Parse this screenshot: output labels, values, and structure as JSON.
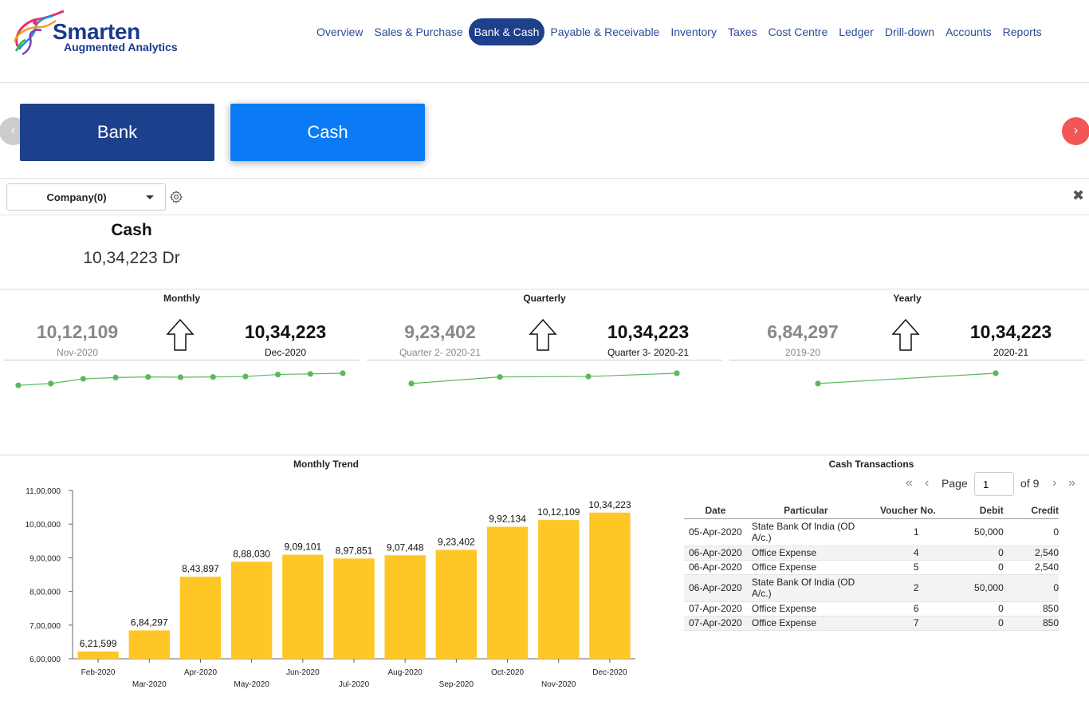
{
  "logo": {
    "line1": "Smarten",
    "line2": "Augmented Analytics"
  },
  "nav": {
    "items": [
      "Overview",
      "Sales & Purchase",
      "Bank & Cash",
      "Payable & Receivable",
      "Inventory",
      "Taxes",
      "Cost Centre",
      "Ledger",
      "Drill-down",
      "Accounts",
      "Reports"
    ],
    "active": "Bank & Cash"
  },
  "tabs": {
    "bank": "Bank",
    "cash": "Cash",
    "prev_icon": "‹",
    "next_icon": "›"
  },
  "filter": {
    "company_label": "Company(0)",
    "settings_icon": "gear-icon",
    "close_icon": "✖"
  },
  "summary": {
    "title": "Cash",
    "value": "10,34,223 Dr"
  },
  "kpis": {
    "monthly": {
      "title": "Monthly",
      "prev_value": "10,12,109",
      "prev_label": "Nov-2020",
      "cur_value": "10,34,223",
      "cur_label": "Dec-2020",
      "trend": [
        621599,
        684297,
        843897,
        888030,
        909101,
        897851,
        907448,
        923402,
        992134,
        1012109,
        1034223
      ]
    },
    "quarterly": {
      "title": "Quarterly",
      "prev_value": "9,23,402",
      "prev_label": "Quarter 2- 2020-21",
      "cur_value": "10,34,223",
      "cur_label": "Quarter 3- 2020-21",
      "trend": [
        684297,
        909101,
        923402,
        1034223
      ]
    },
    "yearly": {
      "title": "Yearly",
      "prev_value": "6,84,297",
      "prev_label": "2019-20",
      "cur_value": "10,34,223",
      "cur_label": "2020-21",
      "trend": [
        684297,
        1034223
      ]
    }
  },
  "chart_data": {
    "type": "bar",
    "title": "Monthly Trend",
    "categories": [
      "Feb-2020",
      "Mar-2020",
      "Apr-2020",
      "May-2020",
      "Jun-2020",
      "Jul-2020",
      "Aug-2020",
      "Sep-2020",
      "Oct-2020",
      "Nov-2020",
      "Dec-2020"
    ],
    "values": [
      621599,
      684297,
      843897,
      888030,
      909101,
      897851,
      907448,
      923402,
      992134,
      1012109,
      1034223
    ],
    "value_labels": [
      "6,21,599",
      "6,84,297",
      "8,43,897",
      "8,88,030",
      "9,09,101",
      "8,97,851",
      "9,07,448",
      "9,23,402",
      "9,92,134",
      "10,12,109",
      "10,34,223"
    ],
    "ylim": [
      600000,
      1100000
    ],
    "yticks": [
      600000,
      700000,
      800000,
      900000,
      1000000,
      1100000
    ],
    "ytick_labels": [
      "6,00,000",
      "7,00,000",
      "8,00,000",
      "9,00,000",
      "10,00,000",
      "11,00,000"
    ],
    "bar_color": "#fec726",
    "xlabel": "",
    "ylabel": "",
    "grid": false
  },
  "transactions": {
    "title": "Cash Transactions",
    "page_label": "Page",
    "page": "1",
    "of_label": "of 9",
    "columns": [
      "Date",
      "Particular",
      "Voucher No.",
      "Debit",
      "Credit"
    ],
    "rows": [
      [
        "05-Apr-2020",
        "State Bank Of India (OD A/c.)",
        "1",
        "50,000",
        "0"
      ],
      [
        "06-Apr-2020",
        "Office Expense",
        "4",
        "0",
        "2,540"
      ],
      [
        "06-Apr-2020",
        "Office Expense",
        "5",
        "0",
        "2,540"
      ],
      [
        "06-Apr-2020",
        "State Bank Of India (OD A/c.)",
        "2",
        "50,000",
        "0"
      ],
      [
        "07-Apr-2020",
        "Office Expense",
        "6",
        "0",
        "850"
      ],
      [
        "07-Apr-2020",
        "Office Expense",
        "7",
        "0",
        "850"
      ]
    ]
  },
  "colors": {
    "nav_active": "#1e3f8a",
    "bank_tab": "#1d408c",
    "cash_tab": "#0a7bf5",
    "spark": "#5cb85c",
    "next_btn": "#f25656"
  }
}
